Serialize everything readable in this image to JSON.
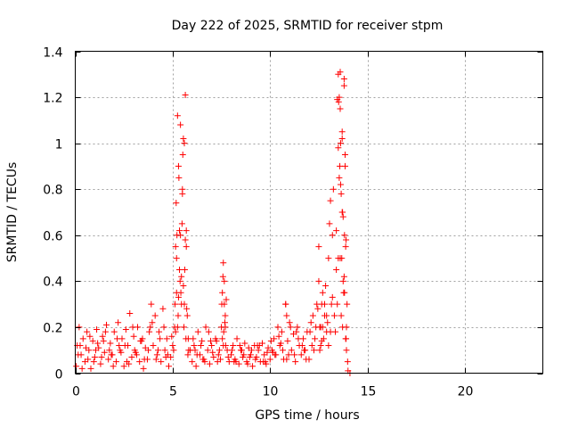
{
  "chart_data": {
    "type": "scatter",
    "title": "Day 222 of 2025, SRMTID for receiver stpm",
    "xlabel": "GPS time / hours",
    "ylabel": "SRMTID / TECUs",
    "xlim": [
      0,
      24
    ],
    "ylim": [
      0,
      1.4
    ],
    "xticks": [
      0,
      5,
      10,
      15,
      20
    ],
    "xtick_labels": [
      "0",
      "5",
      "10",
      "15",
      "20"
    ],
    "yticks": [
      0,
      0.2,
      0.4,
      0.6,
      0.8,
      1.0,
      1.2,
      1.4
    ],
    "ytick_labels": [
      "0",
      "0.2",
      "0.4",
      "0.6",
      "0.8",
      "1",
      "1.2",
      "1.4"
    ],
    "grid": true,
    "marker": "plus",
    "series": [
      {
        "name": "stpm",
        "color": "#ff0000",
        "x": [
          0.05,
          0.1,
          0.2,
          0.3,
          0.4,
          0.5,
          0.6,
          0.7,
          0.8,
          0.9,
          1.0,
          1.1,
          1.2,
          1.3,
          1.4,
          1.5,
          1.6,
          1.7,
          1.8,
          1.9,
          2.0,
          2.1,
          2.2,
          2.3,
          2.4,
          2.5,
          2.6,
          2.7,
          2.8,
          2.9,
          3.0,
          3.1,
          3.2,
          3.3,
          3.4,
          3.5,
          3.6,
          3.7,
          3.8,
          3.9,
          4.0,
          4.1,
          4.2,
          4.3,
          4.4,
          4.5,
          4.6,
          4.7,
          4.8,
          4.9,
          5.0,
          5.1,
          5.15,
          5.2,
          5.25,
          5.3,
          5.35,
          5.4,
          5.45,
          5.5,
          5.55,
          5.6,
          5.65,
          5.7,
          5.75,
          5.8,
          5.9,
          6.0,
          6.1,
          6.2,
          6.3,
          6.4,
          6.5,
          6.6,
          6.7,
          6.8,
          6.9,
          7.0,
          7.1,
          7.2,
          7.3,
          7.4,
          7.5,
          7.55,
          7.6,
          7.65,
          7.7,
          7.8,
          7.9,
          8.0,
          8.1,
          8.2,
          8.3,
          8.4,
          8.5,
          8.6,
          8.7,
          8.8,
          8.9,
          9.0,
          9.1,
          9.2,
          9.3,
          9.4,
          9.5,
          9.6,
          9.7,
          9.8,
          9.9,
          10.0,
          10.1,
          10.2,
          10.3,
          10.4,
          10.5,
          10.6,
          10.7,
          10.8,
          10.9,
          11.0,
          11.1,
          11.2,
          11.3,
          11.4,
          11.5,
          11.6,
          11.7,
          11.8,
          11.9,
          12.0,
          12.1,
          12.2,
          12.3,
          12.4,
          12.5,
          12.6,
          12.7,
          12.8,
          12.9,
          13.0,
          13.1,
          13.2,
          13.3,
          13.4,
          13.5,
          13.55,
          13.6,
          13.65,
          13.7,
          13.75,
          13.8,
          13.85,
          13.9,
          13.95,
          14.0,
          14.1,
          0.15,
          0.35,
          0.55,
          0.75,
          0.95,
          1.15,
          1.35,
          1.55,
          1.75,
          1.95,
          2.15,
          2.35,
          2.55,
          2.75,
          2.95,
          3.15,
          3.35,
          3.55,
          3.75,
          3.95,
          4.15,
          4.35,
          4.55,
          4.75,
          4.95,
          5.12,
          5.22,
          5.32,
          5.42,
          5.52,
          5.62,
          5.72,
          5.82,
          6.05,
          6.25,
          6.45,
          6.65,
          6.85,
          7.05,
          7.25,
          7.45,
          7.58,
          7.68,
          7.85,
          8.05,
          8.25,
          8.45,
          8.65,
          8.85,
          9.05,
          9.25,
          9.45,
          9.65,
          9.85,
          10.05,
          10.25,
          10.45,
          10.65,
          10.85,
          11.05,
          11.25,
          11.45,
          11.65,
          11.85,
          12.05,
          12.25,
          12.45,
          12.65,
          12.85,
          13.05,
          13.25,
          13.45,
          13.58,
          13.68,
          13.78,
          13.88,
          13.98,
          0.25,
          0.65,
          1.05,
          1.45,
          1.85,
          2.25,
          2.65,
          3.05,
          3.45,
          3.85,
          4.25,
          4.65,
          5.05,
          5.18,
          5.28,
          5.38,
          5.48,
          5.58,
          5.68,
          5.78,
          6.15,
          6.55,
          6.95,
          7.35,
          7.52,
          7.62,
          7.72,
          8.15,
          8.55,
          8.95,
          9.35,
          9.75,
          10.15,
          10.55,
          10.95,
          11.35,
          11.75,
          12.15,
          12.35,
          12.55,
          12.75,
          12.95,
          13.15,
          13.35,
          13.52,
          13.62,
          13.72,
          13.82,
          13.92,
          5.2,
          5.3,
          5.4,
          5.5,
          5.6,
          5.7,
          13.5,
          13.6,
          13.7,
          13.8,
          13.9,
          13.55,
          13.65,
          13.75,
          13.85,
          13.6,
          13.7,
          13.8,
          5.25,
          5.35,
          5.45,
          5.55,
          5.65,
          5.15,
          13.4,
          13.45,
          13.5,
          13.62,
          13.72,
          13.82,
          13.88,
          13.92,
          12.7,
          12.8,
          12.9,
          13.0,
          13.1,
          13.2,
          7.6,
          7.65,
          7.7,
          7.75,
          7.55,
          10.8,
          10.85,
          12.5,
          12.55,
          12.6,
          12.65
        ],
        "y": [
          0.03,
          0.12,
          0.2,
          0.08,
          0.15,
          0.05,
          0.18,
          0.1,
          0.02,
          0.14,
          0.07,
          0.19,
          0.11,
          0.04,
          0.16,
          0.09,
          0.21,
          0.06,
          0.13,
          0.08,
          0.18,
          0.05,
          0.22,
          0.1,
          0.15,
          0.03,
          0.19,
          0.12,
          0.26,
          0.07,
          0.16,
          0.09,
          0.2,
          0.05,
          0.14,
          0.02,
          0.11,
          0.06,
          0.18,
          0.3,
          0.12,
          0.25,
          0.08,
          0.18,
          0.05,
          0.28,
          0.1,
          0.15,
          0.03,
          0.07,
          0.12,
          0.2,
          0.55,
          0.35,
          1.12,
          0.9,
          0.62,
          1.08,
          0.42,
          0.8,
          1.02,
          0.3,
          1.21,
          0.62,
          0.25,
          0.15,
          0.1,
          0.05,
          0.12,
          0.03,
          0.18,
          0.08,
          0.14,
          0.06,
          0.2,
          0.1,
          0.04,
          0.12,
          0.07,
          0.15,
          0.05,
          0.1,
          0.2,
          0.35,
          0.48,
          0.3,
          0.25,
          0.1,
          0.05,
          0.08,
          0.12,
          0.06,
          0.15,
          0.04,
          0.1,
          0.07,
          0.13,
          0.05,
          0.11,
          0.08,
          0.03,
          0.12,
          0.07,
          0.1,
          0.05,
          0.13,
          0.08,
          0.04,
          0.11,
          0.06,
          0.1,
          0.15,
          0.08,
          0.2,
          0.12,
          0.18,
          0.06,
          0.3,
          0.14,
          0.22,
          0.1,
          0.17,
          0.05,
          0.2,
          0.12,
          0.08,
          0.15,
          0.1,
          0.18,
          0.06,
          0.22,
          0.25,
          0.15,
          0.3,
          0.55,
          0.2,
          0.35,
          0.25,
          0.18,
          0.5,
          0.75,
          0.6,
          0.25,
          0.45,
          0.98,
          1.2,
          1.31,
          0.78,
          1.05,
          0.4,
          1.28,
          0.95,
          0.58,
          0.3,
          0.01,
          0.0,
          0.08,
          0.02,
          0.11,
          0.16,
          0.05,
          0.13,
          0.07,
          0.18,
          0.1,
          0.03,
          0.15,
          0.09,
          0.12,
          0.04,
          0.2,
          0.08,
          0.14,
          0.06,
          0.1,
          0.22,
          0.06,
          0.15,
          0.2,
          0.08,
          0.16,
          0.3,
          0.6,
          0.85,
          0.35,
          0.95,
          0.45,
          0.28,
          0.1,
          0.15,
          0.08,
          0.12,
          0.05,
          0.18,
          0.09,
          0.14,
          0.06,
          0.42,
          0.22,
          0.07,
          0.1,
          0.05,
          0.12,
          0.08,
          0.04,
          0.1,
          0.06,
          0.12,
          0.05,
          0.09,
          0.14,
          0.08,
          0.16,
          0.1,
          0.06,
          0.2,
          0.08,
          0.15,
          0.12,
          0.06,
          0.18,
          0.1,
          0.28,
          0.14,
          0.38,
          0.65,
          0.8,
          1.19,
          0.9,
          0.5,
          0.35,
          0.15,
          0.05,
          0.12,
          0.06,
          0.1,
          0.14,
          0.08,
          0.12,
          0.05,
          0.1,
          0.15,
          0.2,
          0.1,
          0.07,
          0.1,
          0.74,
          0.25,
          0.4,
          0.65,
          0.2,
          0.15,
          0.08,
          0.1,
          0.06,
          0.14,
          0.08,
          0.3,
          0.18,
          0.12,
          0.05,
          0.1,
          0.07,
          0.12,
          0.05,
          0.09,
          0.13,
          0.08,
          0.18,
          0.1,
          0.12,
          0.2,
          0.1,
          0.15,
          0.22,
          0.3,
          0.18,
          1.18,
          1.0,
          0.7,
          0.6,
          0.2,
          0.5,
          0.33,
          0.6,
          0.78,
          1.0,
          0.55,
          1.3,
          0.5,
          0.7,
          0.42,
          0.15,
          0.85,
          0.25,
          0.68,
          0.9,
          1.15,
          1.02,
          1.25,
          0.2,
          0.45,
          0.3,
          0.38,
          0.58,
          0.18,
          0.62,
          0.3,
          0.5,
          0.82,
          0.2,
          0.35,
          0.55,
          0.1,
          0.2,
          0.3,
          0.25,
          0.12,
          0.18,
          0.33,
          0.12,
          0.4,
          0.2,
          0.32,
          0.15,
          0.3,
          0.25,
          0.4,
          0.2,
          0.12,
          0.3
        ]
      }
    ]
  }
}
